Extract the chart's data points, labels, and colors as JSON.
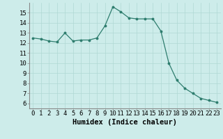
{
  "x": [
    0,
    1,
    2,
    3,
    4,
    5,
    6,
    7,
    8,
    9,
    10,
    11,
    12,
    13,
    14,
    15,
    16,
    17,
    18,
    19,
    20,
    21,
    22,
    23
  ],
  "y": [
    12.5,
    12.4,
    12.2,
    12.1,
    13.0,
    12.2,
    12.3,
    12.3,
    12.5,
    13.7,
    15.6,
    15.1,
    14.5,
    14.4,
    14.4,
    14.4,
    13.2,
    10.0,
    8.3,
    7.5,
    7.0,
    6.5,
    6.3,
    6.1
  ],
  "xlabel": "Humidex (Indice chaleur)",
  "xlim": [
    -0.5,
    23.5
  ],
  "ylim": [
    5.5,
    16.0
  ],
  "yticks": [
    6,
    7,
    8,
    9,
    10,
    11,
    12,
    13,
    14,
    15
  ],
  "xticks": [
    0,
    1,
    2,
    3,
    4,
    5,
    6,
    7,
    8,
    9,
    10,
    11,
    12,
    13,
    14,
    15,
    16,
    17,
    18,
    19,
    20,
    21,
    22,
    23
  ],
  "line_color": "#2e7d6e",
  "bg_color": "#cdecea",
  "grid_color": "#b0d8d4",
  "label_fontsize": 7.5,
  "tick_fontsize": 6.5
}
